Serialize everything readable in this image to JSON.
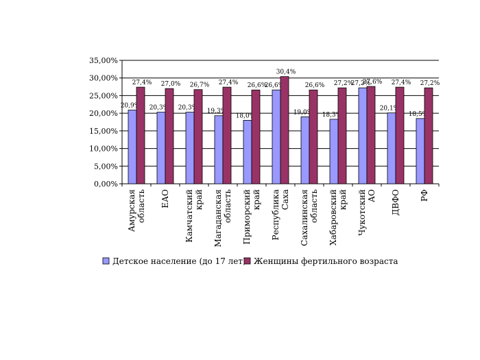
{
  "chart_data": {
    "type": "bar",
    "categories": [
      [
        "Амурская",
        "область"
      ],
      [
        "ЕАО"
      ],
      [
        "Камчатский",
        "край"
      ],
      [
        "Магаданская",
        "область"
      ],
      [
        "Приморский",
        "край"
      ],
      [
        "Республика",
        "Саха"
      ],
      [
        "Сахалинская",
        "область"
      ],
      [
        "Хабаровский",
        "край"
      ],
      [
        "Чукотский",
        "АО"
      ],
      [
        "ДВФО"
      ],
      [
        "РФ"
      ]
    ],
    "series": [
      {
        "name": "Детское население (до 17 лет)",
        "color": "#9999ff",
        "values": [
          20.9,
          20.3,
          20.3,
          19.3,
          18.0,
          26.6,
          19.0,
          18.3,
          27.2,
          20.1,
          18.5
        ],
        "labels": [
          "20,9%",
          "20,3%",
          "20,3%",
          "19,3%",
          "18,0%",
          "26,6%",
          "19,0%",
          "18,3%",
          "27,2%",
          "20,1%",
          "18,5%"
        ]
      },
      {
        "name": "Женщины фертильного возраста",
        "color": "#993366",
        "values": [
          27.4,
          27.0,
          26.7,
          27.4,
          26.6,
          30.4,
          26.6,
          27.2,
          27.6,
          27.4,
          27.2
        ],
        "labels": [
          "27,4%",
          "27,0%",
          "26,7%",
          "27,4%",
          "26,6%",
          "30,4%",
          "26,6%",
          "27,2%",
          "27,6%",
          "27,4%",
          "27,2%"
        ]
      }
    ],
    "y_ticks": [
      "0,00%",
      "5,00%",
      "10,00%",
      "15,00%",
      "20,00%",
      "25,00%",
      "30,00%",
      "35,00%"
    ],
    "ylim": [
      0,
      35
    ],
    "y_step": 5,
    "grid": true,
    "legend_position": "bottom"
  }
}
